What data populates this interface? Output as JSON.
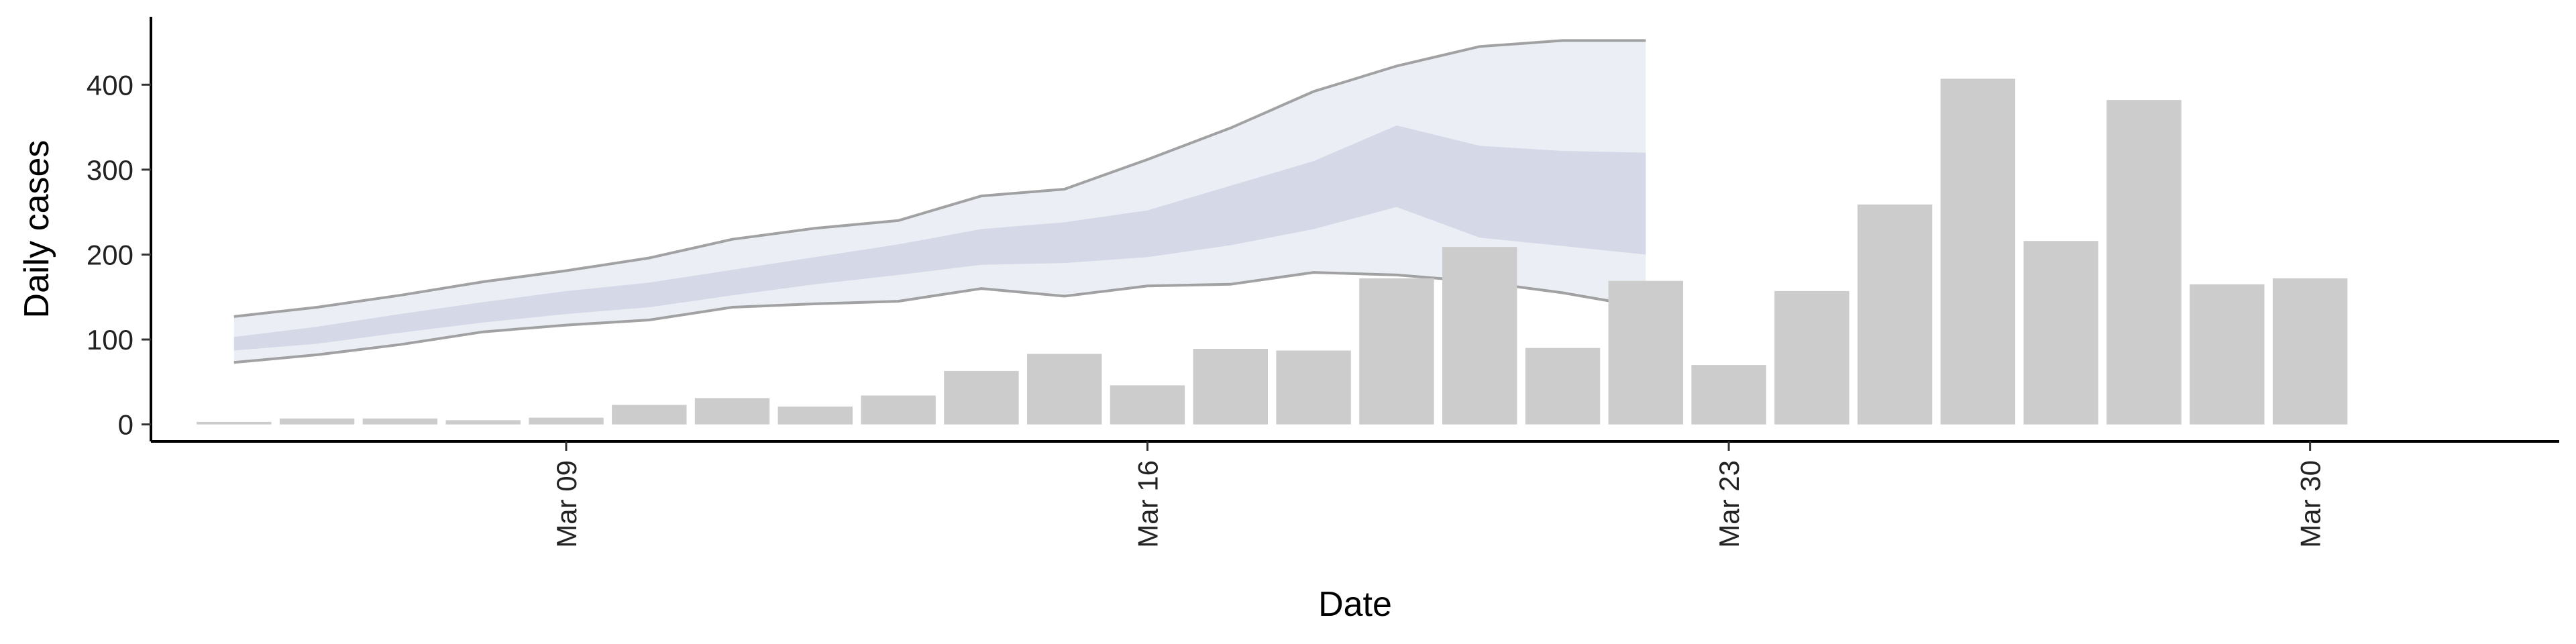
{
  "chart_data": {
    "type": "bar",
    "title": "",
    "xlabel": "Date",
    "ylabel": "Daily cases",
    "x_tick_labels": [
      "Mar 09",
      "Mar 16",
      "Mar 23",
      "Mar 30"
    ],
    "x_tick_dates": [
      "2020-03-09",
      "2020-03-16",
      "2020-03-23",
      "2020-03-30"
    ],
    "xlim": [
      "2020-03-04",
      "2020-04-02"
    ],
    "y_ticks": [
      0,
      100,
      200,
      300,
      400
    ],
    "ylim": [
      -20,
      480
    ],
    "grid": false,
    "legend": "none",
    "bars": {
      "name": "",
      "color": "#cccccc",
      "x": [
        "2020-03-05",
        "2020-03-06",
        "2020-03-07",
        "2020-03-08",
        "2020-03-09",
        "2020-03-10",
        "2020-03-11",
        "2020-03-12",
        "2020-03-13",
        "2020-03-14",
        "2020-03-15",
        "2020-03-16",
        "2020-03-17",
        "2020-03-18",
        "2020-03-19",
        "2020-03-20",
        "2020-03-21",
        "2020-03-22",
        "2020-03-23",
        "2020-03-24",
        "2020-03-25",
        "2020-03-26",
        "2020-03-27",
        "2020-03-28",
        "2020-03-29",
        "2020-03-30",
        "2020-03-31"
      ],
      "values": [
        3,
        7,
        7,
        5,
        8,
        23,
        31,
        21,
        34,
        63,
        83,
        46,
        89,
        87,
        172,
        209,
        90,
        169,
        70,
        157,
        259,
        407,
        216,
        382,
        165,
        172,
        0
      ]
    },
    "forecast": {
      "x": [
        "2020-03-05",
        "2020-03-06",
        "2020-03-07",
        "2020-03-08",
        "2020-03-09",
        "2020-03-10",
        "2020-03-11",
        "2020-03-12",
        "2020-03-13",
        "2020-03-14",
        "2020-03-15",
        "2020-03-16",
        "2020-03-17",
        "2020-03-18",
        "2020-03-19",
        "2020-03-20",
        "2020-03-21",
        "2020-03-22"
      ],
      "outer_upper": [
        127,
        138,
        152,
        168,
        181,
        196,
        218,
        231,
        240,
        269,
        277,
        312,
        349,
        392,
        422,
        445,
        452,
        452
      ],
      "outer_lower": [
        73,
        82,
        94,
        109,
        117,
        123,
        138,
        142,
        145,
        160,
        151,
        163,
        165,
        179,
        176,
        168,
        155,
        138
      ],
      "inner_upper": [
        103,
        115,
        130,
        144,
        157,
        167,
        182,
        197,
        212,
        230,
        238,
        252,
        281,
        310,
        352,
        328,
        322,
        320
      ],
      "inner_lower": [
        87,
        95,
        108,
        120,
        130,
        138,
        152,
        165,
        176,
        188,
        190,
        197,
        211,
        230,
        256,
        220,
        210,
        200
      ],
      "colors": {
        "outer_fill": "#e6e8f1",
        "inner_fill": "#c5cade",
        "outer_line": "#8c8c8c"
      }
    }
  }
}
